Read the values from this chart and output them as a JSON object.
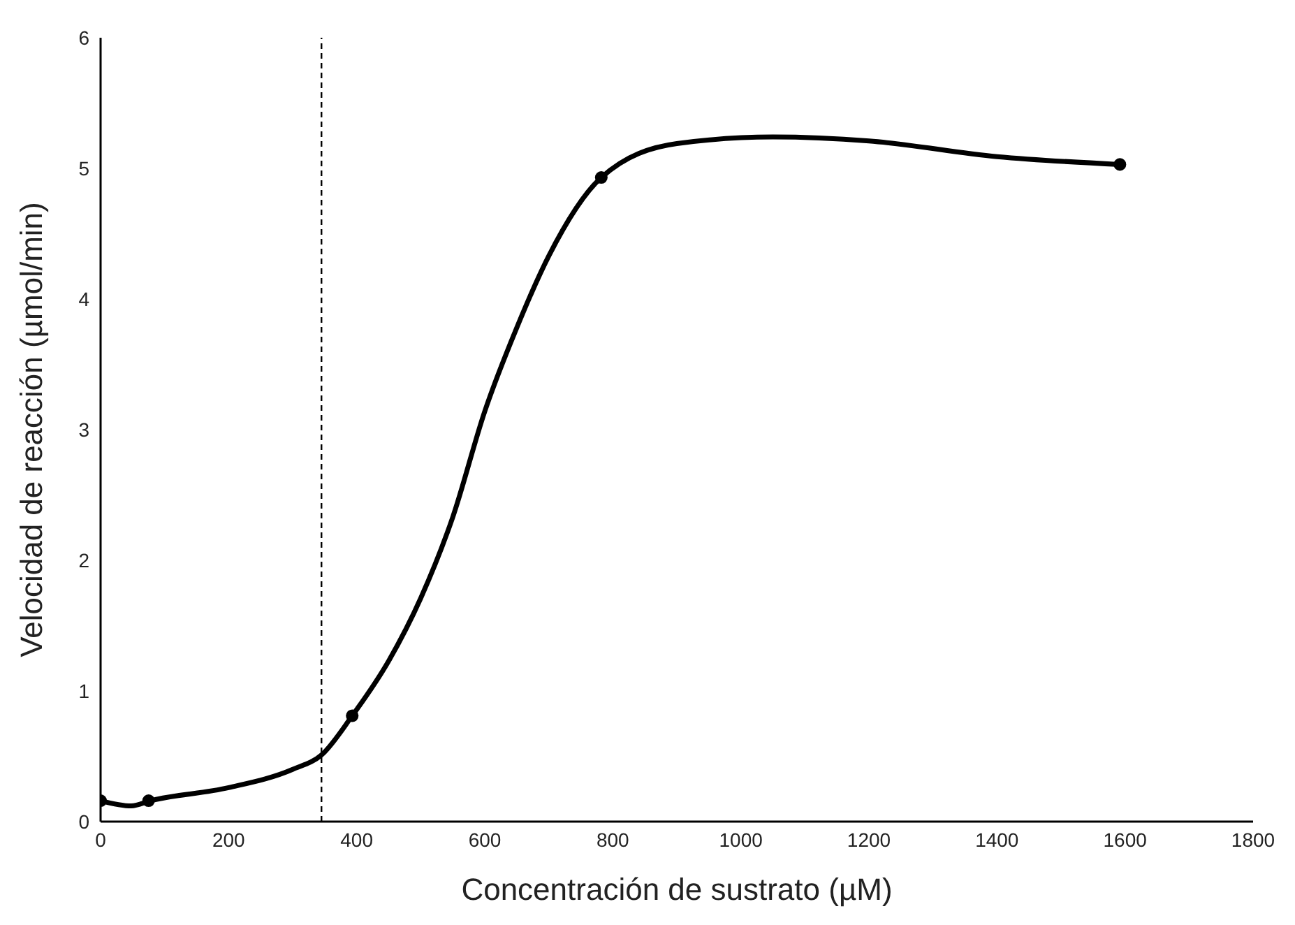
{
  "chart_data": {
    "type": "scatter",
    "xlabel": "Concentración de sustrato (µM)",
    "ylabel": "Velocidad de reacción (µmol/min)",
    "xlim": [
      0,
      1800
    ],
    "xticks": [
      0,
      200,
      400,
      600,
      800,
      1000,
      1200,
      1400,
      1600,
      1800
    ],
    "ylim": [
      0,
      6
    ],
    "yticks": [
      0,
      1,
      2,
      3,
      4,
      5,
      6
    ],
    "grid": false,
    "legend": false,
    "series": [
      {
        "type": "line",
        "color": "#000000",
        "marker": "none",
        "line_style": "solid",
        "x": [
          0,
          48,
          78,
          200,
          300,
          345,
          393,
          450,
          500,
          550,
          600,
          650,
          700,
          782,
          900,
          1050,
          1200,
          1400,
          1592
        ],
        "values": [
          0.16,
          0.12,
          0.16,
          0.26,
          0.4,
          0.51,
          0.81,
          1.23,
          1.71,
          2.33,
          3.14,
          3.78,
          4.33,
          4.93,
          5.19,
          5.24,
          5.21,
          5.09,
          5.03
        ]
      },
      {
        "color": "#000000",
        "marker": "circle",
        "x": [
          0,
          75,
          393,
          782,
          1592
        ],
        "values": [
          0.16,
          0.16,
          0.81,
          4.93,
          5.03
        ]
      }
    ],
    "ref_lines": [
      {
        "axis": "x",
        "value": 345,
        "line_style": "dashed",
        "color": "#000000"
      }
    ]
  }
}
